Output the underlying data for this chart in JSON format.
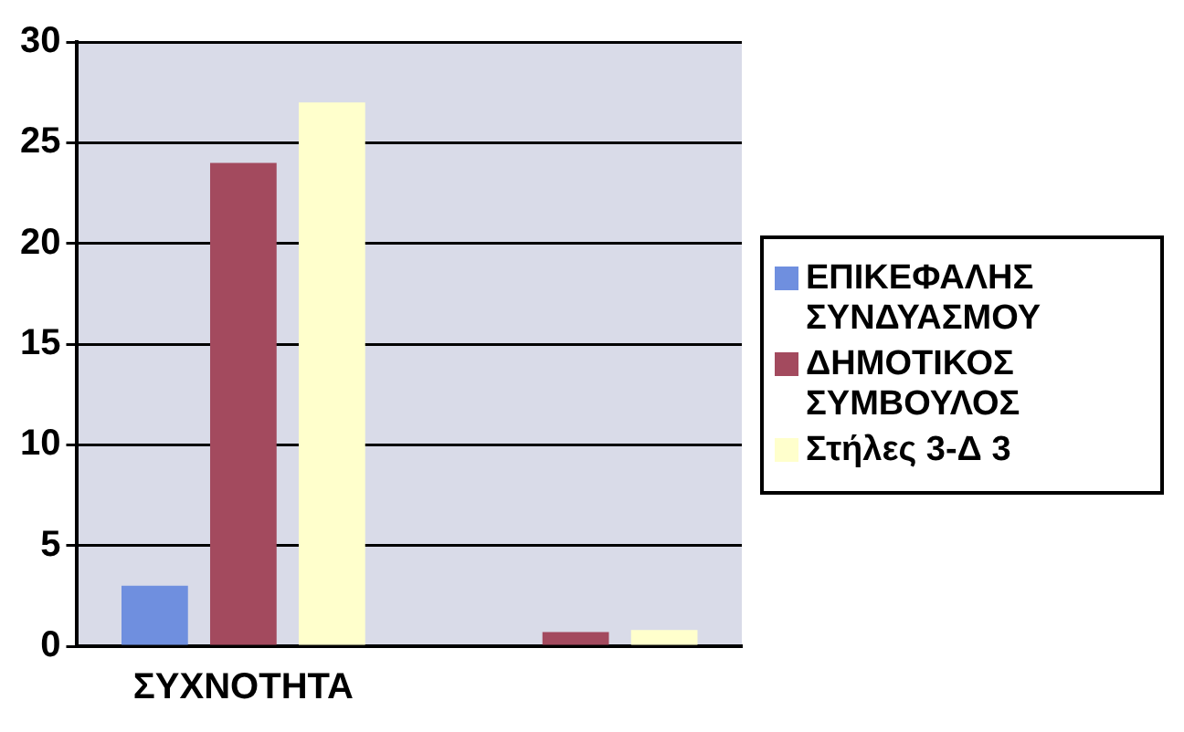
{
  "chart_data": {
    "type": "bar",
    "categories": [
      "ΣΥΧΝΟΤΗΤΑ",
      null
    ],
    "series": [
      {
        "name": "ΕΠΙΚΕΦΑΛΗΣ ΣΥΝΔΥΑΣΜΟΥ",
        "color": "#6f8fdf",
        "values": [
          3,
          0
        ]
      },
      {
        "name": "ΔΗΜΟΤΙΚΟΣ ΣΥΜΒΟΥΛΟΣ",
        "color": "#a34a5e",
        "values": [
          24,
          0.7
        ]
      },
      {
        "name": "Στήλες 3-Δ 3",
        "color": "#ffffcc",
        "values": [
          27,
          0.8
        ]
      }
    ],
    "ylim": [
      0,
      30
    ],
    "yticks": [
      0,
      5,
      10,
      15,
      20,
      25,
      30
    ],
    "grid": "y",
    "legend": "right"
  }
}
